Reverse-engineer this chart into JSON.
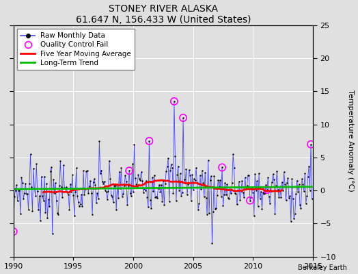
{
  "title": "STONEY RIVER ALASKA",
  "subtitle": "61.647 N, 156.433 W (United States)",
  "ylabel": "Temperature Anomaly (°C)",
  "xlim": [
    1990,
    2015
  ],
  "ylim": [
    -10,
    25
  ],
  "yticks": [
    -10,
    -5,
    0,
    5,
    10,
    15,
    20,
    25
  ],
  "xticks": [
    1990,
    1995,
    2000,
    2005,
    2010,
    2015
  ],
  "background_color": "#e0e0e0",
  "raw_line_color": "#4444ff",
  "raw_marker_color": "#000000",
  "qc_fail_color": "#ff00ff",
  "moving_avg_color": "#ff0000",
  "trend_color": "#00bb00",
  "watermark": "Berkeley Earth",
  "legend_labels": [
    "Raw Monthly Data",
    "Quality Control Fail",
    "Five Year Moving Average",
    "Long-Term Trend"
  ]
}
